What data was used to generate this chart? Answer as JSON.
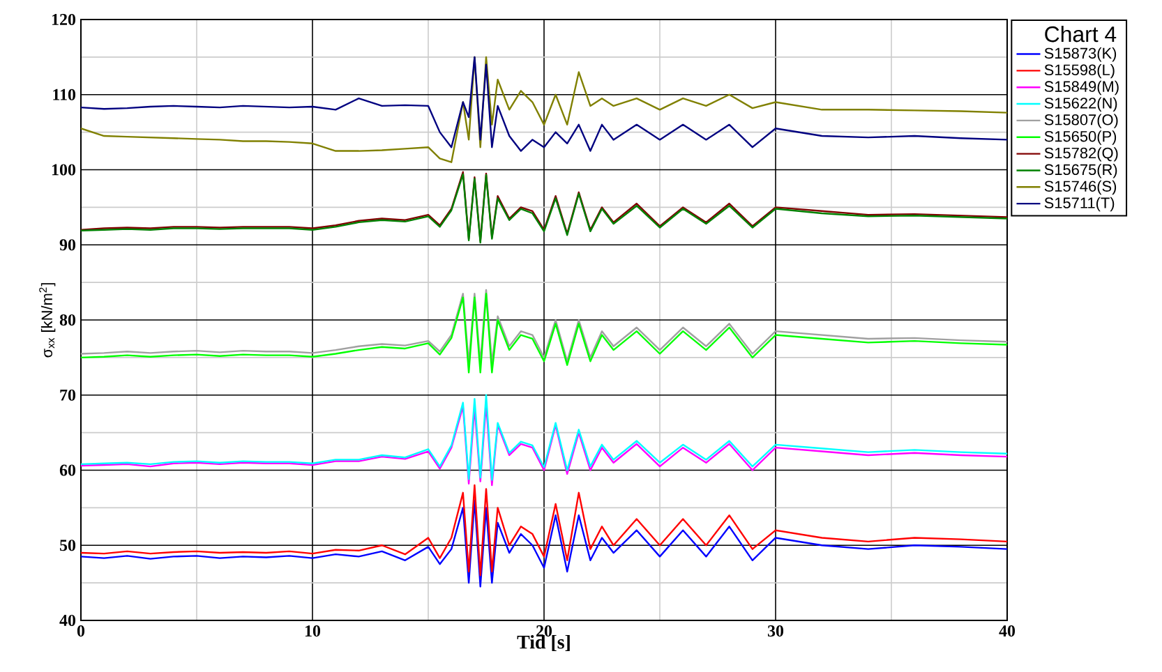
{
  "chart_data": {
    "type": "line",
    "xlabel": "Tid [s]",
    "ylabel": "σ$_{xx}$ [kN/m$^{2}$]",
    "legend_title": "Chart 4",
    "legend": "top right",
    "grid": true,
    "xlim": [
      0,
      40
    ],
    "xticks": [
      0,
      10,
      20,
      30,
      40
    ],
    "ylim": [
      40,
      120
    ],
    "yticks": [
      40,
      50,
      60,
      70,
      80,
      90,
      100,
      110,
      120
    ],
    "x": [
      0,
      1,
      2,
      3,
      4,
      5,
      6,
      7,
      8,
      9,
      10,
      11,
      12,
      13,
      14,
      15,
      15.5,
      16,
      16.5,
      16.75,
      17,
      17.25,
      17.5,
      17.75,
      18,
      18.5,
      19,
      19.5,
      20,
      20.5,
      21,
      21.5,
      22,
      22.5,
      23,
      24,
      25,
      26,
      27,
      28,
      29,
      30,
      32,
      34,
      36,
      38,
      40
    ],
    "series": [
      {
        "name": "S15873(K)",
        "color": "#0000ff",
        "values": [
          48.5,
          48.3,
          48.6,
          48.2,
          48.5,
          48.6,
          48.3,
          48.5,
          48.4,
          48.6,
          48.3,
          48.8,
          48.5,
          49.2,
          48.0,
          49.8,
          47.5,
          49.5,
          55,
          45,
          56,
          44.5,
          55,
          45,
          53,
          49,
          51.5,
          50,
          47,
          54,
          46.5,
          54,
          48,
          51,
          49,
          52,
          48.5,
          52,
          48.5,
          52.5,
          48,
          51,
          50,
          49.5,
          50,
          49.8,
          49.5
        ]
      },
      {
        "name": "S15598(L)",
        "color": "#ff0000",
        "values": [
          49,
          48.9,
          49.2,
          48.9,
          49.1,
          49.2,
          49,
          49.1,
          49,
          49.2,
          48.9,
          49.4,
          49.3,
          50,
          48.8,
          51,
          48.3,
          51,
          57,
          46.5,
          58,
          46,
          57.5,
          46.5,
          55,
          50,
          52.5,
          51.5,
          48.5,
          55.5,
          48,
          57,
          49.5,
          52.5,
          50,
          53.5,
          50,
          53.5,
          50,
          54,
          49.5,
          52,
          51,
          50.5,
          51,
          50.8,
          50.5
        ]
      },
      {
        "name": "S15849(M)",
        "color": "#ff00ff",
        "values": [
          60.6,
          60.7,
          60.8,
          60.5,
          60.9,
          61,
          60.8,
          61,
          60.9,
          60.9,
          60.7,
          61.2,
          61.2,
          61.8,
          61.5,
          62.5,
          60.2,
          63,
          68.5,
          58.2,
          68.3,
          58.5,
          68.8,
          58,
          66,
          62,
          63.5,
          63,
          60,
          66,
          59.5,
          65,
          60,
          63,
          61,
          63.5,
          60.5,
          63,
          61,
          63.5,
          60,
          63,
          62.5,
          62,
          62.3,
          62,
          61.8
        ]
      },
      {
        "name": "S15622(N)",
        "color": "#00ffff",
        "values": [
          60.8,
          60.9,
          61,
          60.8,
          61.1,
          61.2,
          61,
          61.2,
          61.1,
          61.1,
          60.9,
          61.4,
          61.4,
          62,
          61.7,
          62.8,
          60.5,
          63.3,
          69,
          58.8,
          69.5,
          59,
          70,
          58.7,
          66.3,
          62.3,
          63.8,
          63.3,
          60.4,
          66.3,
          60,
          65.4,
          60.5,
          63.4,
          61.4,
          63.9,
          61,
          63.4,
          61.4,
          63.9,
          60.5,
          63.4,
          62.9,
          62.4,
          62.7,
          62.4,
          62.2
        ]
      },
      {
        "name": "S15807(O)",
        "color": "#a0a0a0",
        "values": [
          75.5,
          75.6,
          75.8,
          75.6,
          75.8,
          75.9,
          75.7,
          75.9,
          75.8,
          75.8,
          75.6,
          76,
          76.5,
          76.8,
          76.6,
          77.2,
          75.8,
          78,
          83.5,
          74.3,
          83.5,
          74.3,
          84,
          74.3,
          80.5,
          76.5,
          78.5,
          78,
          75,
          80,
          74.5,
          80,
          75,
          78.5,
          76.5,
          79,
          76,
          79,
          76.5,
          79.5,
          75.5,
          78.5,
          78,
          77.5,
          77.6,
          77.3,
          77.1
        ]
      },
      {
        "name": "S15650(P)",
        "color": "#00ff00",
        "values": [
          75,
          75.1,
          75.3,
          75.1,
          75.3,
          75.4,
          75.2,
          75.4,
          75.3,
          75.3,
          75.1,
          75.5,
          76,
          76.4,
          76.2,
          76.9,
          75.4,
          77.6,
          83,
          73,
          83,
          73,
          83.5,
          73,
          80,
          76,
          78,
          77.5,
          74.5,
          79.5,
          74,
          79.5,
          74.5,
          78,
          76,
          78.5,
          75.5,
          78.5,
          76,
          79,
          75,
          78,
          77.5,
          77,
          77.2,
          76.9,
          76.7
        ]
      },
      {
        "name": "S15782(Q)",
        "color": "#800000",
        "values": [
          92,
          92.2,
          92.3,
          92.2,
          92.4,
          92.4,
          92.3,
          92.4,
          92.4,
          92.4,
          92.2,
          92.6,
          93.2,
          93.5,
          93.3,
          94,
          92.6,
          94.8,
          99.7,
          90.8,
          99,
          90.5,
          99.5,
          91,
          96.5,
          93.5,
          95,
          94.5,
          92,
          96.5,
          91.5,
          97,
          92,
          95,
          93,
          95.5,
          92.5,
          95,
          93,
          95.5,
          92.5,
          95,
          94.5,
          94,
          94.1,
          93.9,
          93.7
        ]
      },
      {
        "name": "S15675(R)",
        "color": "#008000",
        "values": [
          91.9,
          92,
          92.1,
          92,
          92.2,
          92.2,
          92.1,
          92.2,
          92.2,
          92.2,
          92,
          92.4,
          93,
          93.3,
          93.1,
          93.8,
          92.4,
          94.6,
          99.4,
          90.6,
          98.8,
          90.3,
          99.3,
          90.8,
          96.2,
          93.3,
          94.8,
          94.2,
          91.8,
          96.2,
          91.3,
          96.8,
          91.8,
          94.8,
          92.8,
          95.2,
          92.3,
          94.8,
          92.8,
          95.2,
          92.3,
          94.8,
          94.2,
          93.8,
          93.9,
          93.7,
          93.5
        ]
      },
      {
        "name": "S15746(S)",
        "color": "#808000",
        "values": [
          105.5,
          104.5,
          104.4,
          104.3,
          104.2,
          104.1,
          104,
          103.8,
          103.8,
          103.7,
          103.5,
          102.5,
          102.5,
          102.6,
          102.8,
          103,
          101.5,
          101,
          109,
          104,
          115,
          103,
          115,
          106,
          112,
          108,
          110.5,
          109,
          106,
          110,
          106,
          113,
          108.5,
          109.5,
          108.5,
          109.5,
          108,
          109.5,
          108.5,
          110,
          108.2,
          109,
          108,
          108,
          107.9,
          107.8,
          107.6
        ]
      },
      {
        "name": "S15711(T)",
        "color": "#000080",
        "values": [
          108.3,
          108.1,
          108.2,
          108.4,
          108.5,
          108.4,
          108.3,
          108.5,
          108.4,
          108.3,
          108.4,
          108,
          109.5,
          108.5,
          108.6,
          108.5,
          105,
          103,
          109,
          107,
          115,
          104,
          114,
          103,
          108.5,
          104.5,
          102.5,
          104,
          103,
          105,
          103.5,
          106,
          102.5,
          106,
          104,
          106,
          104,
          106,
          104,
          106,
          103,
          105.5,
          104.5,
          104.3,
          104.5,
          104.2,
          104
        ]
      }
    ]
  }
}
